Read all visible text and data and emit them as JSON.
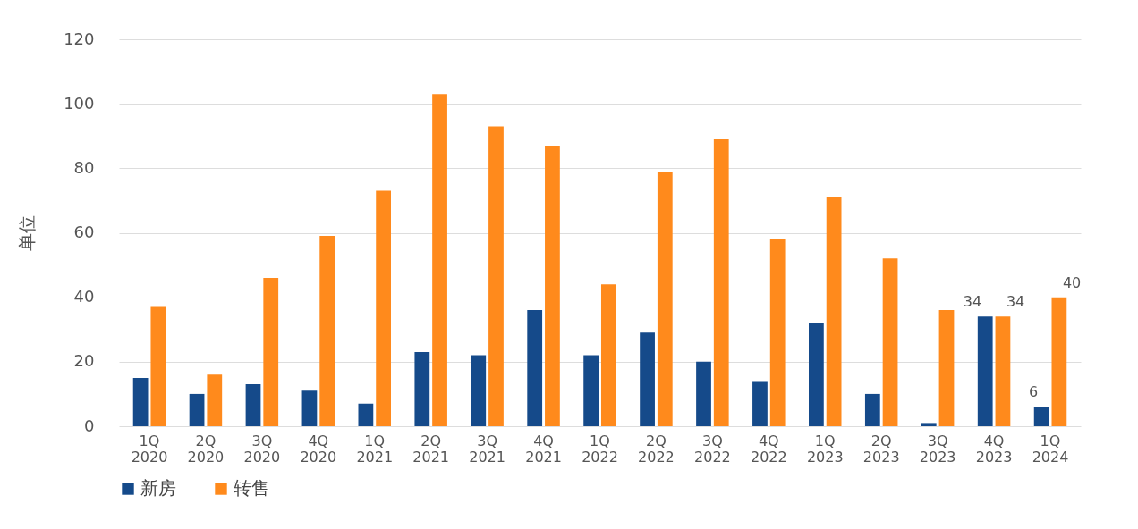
{
  "chart_data": {
    "type": "bar",
    "ylabel": "单位",
    "categories": [
      "1Q 2020",
      "2Q 2020",
      "3Q 2020",
      "4Q 2020",
      "1Q 2021",
      "2Q 2021",
      "3Q 2021",
      "4Q 2021",
      "1Q 2022",
      "2Q 2022",
      "3Q 2022",
      "4Q 2022",
      "1Q 2023",
      "2Q 2023",
      "3Q 2023",
      "4Q 2023",
      "1Q 2024"
    ],
    "series": [
      {
        "name": "新房",
        "color": "#154a8a",
        "values": [
          15,
          10,
          13,
          11,
          7,
          23,
          22,
          36,
          22,
          29,
          20,
          14,
          32,
          10,
          1,
          34,
          6
        ],
        "value_labels": [
          null,
          null,
          null,
          null,
          null,
          null,
          null,
          null,
          null,
          null,
          null,
          null,
          null,
          null,
          null,
          "34",
          "6"
        ]
      },
      {
        "name": "转售",
        "color": "#ff8a1c",
        "values": [
          37,
          16,
          46,
          59,
          73,
          103,
          93,
          87,
          44,
          79,
          89,
          58,
          71,
          52,
          36,
          34,
          40
        ],
        "value_labels": [
          null,
          null,
          null,
          null,
          null,
          null,
          null,
          null,
          null,
          null,
          null,
          null,
          null,
          null,
          null,
          "34",
          "40"
        ]
      }
    ],
    "ylim": [
      0,
      120
    ],
    "yticks": [
      0,
      20,
      40,
      60,
      80,
      100,
      120
    ],
    "grid": "y",
    "legend": "bottom"
  }
}
